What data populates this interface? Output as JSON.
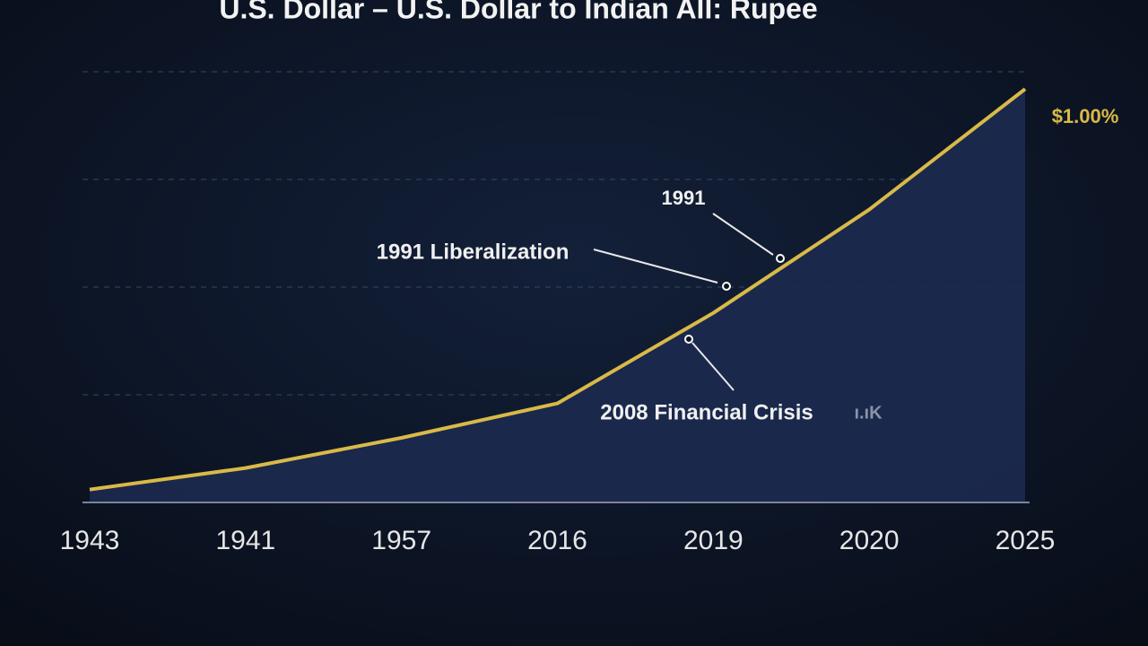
{
  "chart_data": {
    "type": "area",
    "title": "U.S. Dollar  –  U.S. Dollar to Indian All: Rupee",
    "categories": [
      "1943",
      "1941",
      "1957",
      "2016",
      "2019",
      "2020",
      "2025"
    ],
    "values": [
      3,
      8,
      15,
      23,
      44,
      68,
      96
    ],
    "end_label": "$1.00%",
    "annotations": [
      "1991",
      "1991 Liberalization",
      "2008 Financial Crisis",
      "ı.ıK"
    ],
    "ylim": [
      0,
      100
    ],
    "yticks": [
      0,
      25,
      50,
      75,
      100
    ],
    "grid": true,
    "color": "#d9b948",
    "fill": "#1c2a50"
  }
}
